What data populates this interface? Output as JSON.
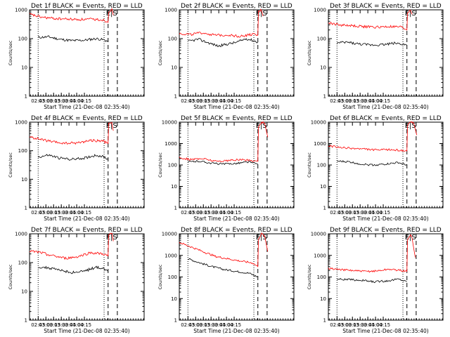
{
  "chart_data": [
    {
      "type": "line",
      "title": "Det 1f BLACK = Events, RED = LLD",
      "xlabel": "Start Time (21-Dec-08 02:35:40)",
      "ylabel": "Counts/sec",
      "yscale": "log",
      "ylim": [
        1,
        1000
      ],
      "y_tick_labels": [
        "1",
        "10",
        "100",
        "1000"
      ],
      "xlim": [
        0.63,
        4.35
      ],
      "x_tick_labels": [
        "02:45",
        "03:00",
        "03:15",
        "03:30",
        "03:45",
        "04:00",
        "04:15"
      ],
      "grid": false,
      "event_label": "E|S",
      "series": [
        {
          "name": "Events",
          "color": "#000000",
          "x": [
            0.91,
            1.25,
            1.6,
            2.0,
            2.4,
            2.8,
            3.05,
            3.18
          ],
          "y": [
            110,
            115,
            95,
            85,
            88,
            100,
            90,
            80
          ]
        },
        {
          "name": "LLD",
          "color": "#ff0000",
          "x": [
            0.63,
            1.0,
            1.4,
            1.8,
            2.2,
            2.6,
            3.0,
            3.18,
            3.2,
            3.3,
            3.35
          ],
          "y": [
            700,
            560,
            500,
            480,
            460,
            470,
            450,
            380,
            900,
            1000,
            650
          ]
        }
      ]
    },
    {
      "type": "line",
      "title": "Det 2f BLACK = Events, RED = LLD",
      "xlabel": "Start Time (21-Dec-08 02:35:40)",
      "ylabel": "Counts/sec",
      "yscale": "log",
      "ylim": [
        1,
        1000
      ],
      "y_tick_labels": [
        "1",
        "10",
        "100",
        "1000"
      ],
      "xlim": [
        0.63,
        4.35
      ],
      "x_tick_labels": [
        "02:45",
        "03:00",
        "03:15",
        "03:30",
        "03:45",
        "04:00",
        "04:15"
      ],
      "grid": false,
      "event_label": "E|S",
      "series": [
        {
          "name": "Events",
          "color": "#000000",
          "x": [
            0.91,
            1.25,
            1.6,
            1.9,
            2.2,
            2.5,
            2.8,
            3.05,
            3.18
          ],
          "y": [
            80,
            95,
            70,
            55,
            65,
            75,
            100,
            85,
            75
          ]
        },
        {
          "name": "LLD",
          "color": "#ff0000",
          "x": [
            0.63,
            1.0,
            1.4,
            1.8,
            2.2,
            2.6,
            3.0,
            3.18,
            3.2,
            3.3,
            3.35
          ],
          "y": [
            150,
            140,
            160,
            130,
            135,
            120,
            140,
            130,
            850,
            1000,
            600
          ]
        }
      ]
    },
    {
      "type": "line",
      "title": "Det 3f BLACK = Events, RED = LLD",
      "xlabel": "Start Time (21-Dec-08 02:35:40)",
      "ylabel": "Counts/sec",
      "yscale": "log",
      "ylim": [
        1,
        1000
      ],
      "y_tick_labels": [
        "1",
        "10",
        "100",
        "1000"
      ],
      "xlim": [
        0.63,
        4.35
      ],
      "x_tick_labels": [
        "02:45",
        "03:00",
        "03:15",
        "03:30",
        "03:45",
        "04:00",
        "04:15"
      ],
      "grid": false,
      "event_label": "E|S",
      "series": [
        {
          "name": "Events",
          "color": "#000000",
          "x": [
            0.91,
            1.25,
            1.6,
            2.0,
            2.4,
            2.8,
            3.05,
            3.18
          ],
          "y": [
            70,
            75,
            65,
            60,
            62,
            70,
            65,
            60
          ]
        },
        {
          "name": "LLD",
          "color": "#ff0000",
          "x": [
            0.63,
            1.0,
            1.4,
            1.8,
            2.2,
            2.6,
            3.0,
            3.18,
            3.2,
            3.3,
            3.35
          ],
          "y": [
            350,
            300,
            280,
            260,
            250,
            260,
            250,
            200,
            800,
            1000,
            700
          ]
        }
      ]
    },
    {
      "type": "line",
      "title": "Det 4f BLACK = Events, RED = LLD",
      "xlabel": "Start Time (21-Dec-08 02:35:40)",
      "ylabel": "Counts/sec",
      "yscale": "log",
      "ylim": [
        1,
        1000
      ],
      "y_tick_labels": [
        "1",
        "10",
        "100",
        "1000"
      ],
      "xlim": [
        0.63,
        4.35
      ],
      "x_tick_labels": [
        "02:45",
        "03:00",
        "03:15",
        "03:30",
        "03:45",
        "04:00",
        "04:15"
      ],
      "grid": false,
      "event_label": "E|S",
      "series": [
        {
          "name": "Events",
          "color": "#000000",
          "x": [
            0.91,
            1.25,
            1.6,
            2.0,
            2.4,
            2.8,
            3.05,
            3.18
          ],
          "y": [
            60,
            70,
            55,
            50,
            55,
            70,
            60,
            50
          ]
        },
        {
          "name": "LLD",
          "color": "#ff0000",
          "x": [
            0.63,
            1.0,
            1.4,
            1.8,
            2.2,
            2.6,
            3.0,
            3.18,
            3.2,
            3.3,
            3.35
          ],
          "y": [
            300,
            250,
            200,
            180,
            190,
            230,
            220,
            180,
            850,
            1000,
            500
          ]
        }
      ]
    },
    {
      "type": "line",
      "title": "Det 5f BLACK = Events, RED = LLD",
      "xlabel": "Start Time (21-Dec-08 02:35:40)",
      "ylabel": "Counts/sec",
      "yscale": "log",
      "ylim": [
        1,
        10000
      ],
      "y_tick_labels": [
        "1",
        "10",
        "100",
        "1000",
        "10000"
      ],
      "xlim": [
        0.63,
        4.35
      ],
      "x_tick_labels": [
        "02:45",
        "03:00",
        "03:15",
        "03:30",
        "03:45",
        "04:00",
        "04:15"
      ],
      "grid": false,
      "event_label": "E|S",
      "series": [
        {
          "name": "Events",
          "color": "#000000",
          "x": [
            0.91,
            1.3,
            1.7,
            2.1,
            2.5,
            2.9,
            3.05,
            3.18
          ],
          "y": [
            140,
            150,
            120,
            110,
            120,
            140,
            120,
            110
          ]
        },
        {
          "name": "LLD",
          "color": "#ff0000",
          "x": [
            0.63,
            1.0,
            1.4,
            1.8,
            2.2,
            2.6,
            3.0,
            3.18,
            3.2,
            3.3,
            3.4,
            3.5
          ],
          "y": [
            220,
            180,
            200,
            150,
            160,
            180,
            160,
            150,
            6000,
            10000,
            9000,
            2000
          ]
        }
      ]
    },
    {
      "type": "line",
      "title": "Det 6f BLACK = Events, RED = LLD",
      "xlabel": "Start Time (21-Dec-08 02:35:40)",
      "ylabel": "Counts/sec",
      "yscale": "log",
      "ylim": [
        1,
        10000
      ],
      "y_tick_labels": [
        "1",
        "10",
        "100",
        "1000",
        "10000"
      ],
      "xlim": [
        0.63,
        4.35
      ],
      "x_tick_labels": [
        "02:45",
        "03:00",
        "03:15",
        "03:30",
        "03:45",
        "04:00",
        "04:15"
      ],
      "grid": false,
      "event_label": "E|S",
      "series": [
        {
          "name": "Events",
          "color": "#000000",
          "x": [
            0.91,
            1.3,
            1.7,
            2.1,
            2.5,
            2.9,
            3.05,
            3.18
          ],
          "y": [
            150,
            140,
            110,
            100,
            110,
            130,
            110,
            100
          ]
        },
        {
          "name": "LLD",
          "color": "#ff0000",
          "x": [
            0.63,
            1.0,
            1.4,
            1.8,
            2.2,
            2.6,
            3.0,
            3.18,
            3.2,
            3.3,
            3.4,
            3.5
          ],
          "y": [
            800,
            650,
            600,
            550,
            500,
            520,
            480,
            450,
            7000,
            10000,
            9000,
            2500
          ]
        }
      ]
    },
    {
      "type": "line",
      "title": "Det 7f BLACK = Events, RED = LLD",
      "xlabel": "Start Time (21-Dec-08 02:35:40)",
      "ylabel": "Counts/sec",
      "yscale": "log",
      "ylim": [
        1,
        1000
      ],
      "y_tick_labels": [
        "1",
        "10",
        "100",
        "1000"
      ],
      "xlim": [
        0.63,
        4.35
      ],
      "x_tick_labels": [
        "02:45",
        "03:00",
        "03:15",
        "03:30",
        "03:45",
        "04:00",
        "04:15"
      ],
      "grid": false,
      "event_label": "E|S",
      "series": [
        {
          "name": "Events",
          "color": "#000000",
          "x": [
            0.91,
            1.25,
            1.6,
            2.0,
            2.4,
            2.8,
            3.05,
            3.18
          ],
          "y": [
            70,
            65,
            55,
            45,
            50,
            70,
            60,
            50
          ]
        },
        {
          "name": "LLD",
          "color": "#ff0000",
          "x": [
            0.63,
            1.0,
            1.4,
            1.8,
            2.2,
            2.6,
            3.0,
            3.18,
            3.2,
            3.3,
            3.35
          ],
          "y": [
            250,
            220,
            170,
            140,
            160,
            220,
            200,
            170,
            900,
            1000,
            550
          ]
        }
      ]
    },
    {
      "type": "line",
      "title": "Det 8f BLACK = Events, RED = LLD",
      "xlabel": "Start Time (21-Dec-08 02:35:40)",
      "ylabel": "Counts/sec",
      "yscale": "log",
      "ylim": [
        1,
        10000
      ],
      "y_tick_labels": [
        "1",
        "10",
        "100",
        "1000",
        "10000"
      ],
      "xlim": [
        0.63,
        4.35
      ],
      "x_tick_labels": [
        "02:45",
        "03:00",
        "03:15",
        "03:30",
        "03:45",
        "04:00",
        "04:15"
      ],
      "grid": false,
      "event_label": "E|S",
      "series": [
        {
          "name": "Events",
          "color": "#000000",
          "x": [
            0.91,
            1.3,
            1.7,
            2.1,
            2.5,
            2.9,
            3.05,
            3.18
          ],
          "y": [
            700,
            450,
            300,
            220,
            180,
            150,
            120,
            100
          ]
        },
        {
          "name": "LLD",
          "color": "#ff0000",
          "x": [
            0.63,
            1.0,
            1.4,
            1.8,
            2.2,
            2.6,
            3.0,
            3.18,
            3.2,
            3.3,
            3.4,
            3.5
          ],
          "y": [
            4000,
            2500,
            1500,
            900,
            700,
            550,
            450,
            300,
            6000,
            10000,
            8000,
            1500
          ]
        }
      ]
    },
    {
      "type": "line",
      "title": "Det 9f BLACK = Events, RED = LLD",
      "xlabel": "Start Time (21-Dec-08 02:35:40)",
      "ylabel": "Counts/sec",
      "yscale": "log",
      "ylim": [
        1,
        10000
      ],
      "y_tick_labels": [
        "1",
        "10",
        "100",
        "1000",
        "10000"
      ],
      "xlim": [
        0.63,
        4.35
      ],
      "x_tick_labels": [
        "02:45",
        "03:00",
        "03:15",
        "03:30",
        "03:45",
        "04:00",
        "04:15"
      ],
      "grid": false,
      "event_label": "E|S",
      "series": [
        {
          "name": "Events",
          "color": "#000000",
          "x": [
            0.91,
            1.3,
            1.7,
            2.1,
            2.5,
            2.9,
            3.05,
            3.18
          ],
          "y": [
            80,
            75,
            70,
            60,
            65,
            80,
            70,
            60
          ]
        },
        {
          "name": "LLD",
          "color": "#ff0000",
          "x": [
            0.63,
            1.0,
            1.4,
            1.8,
            2.2,
            2.6,
            3.0,
            3.18,
            3.2,
            3.3,
            3.35,
            3.45
          ],
          "y": [
            250,
            220,
            200,
            180,
            190,
            230,
            200,
            180,
            5000,
            10000,
            6000,
            800
          ]
        }
      ]
    }
  ]
}
